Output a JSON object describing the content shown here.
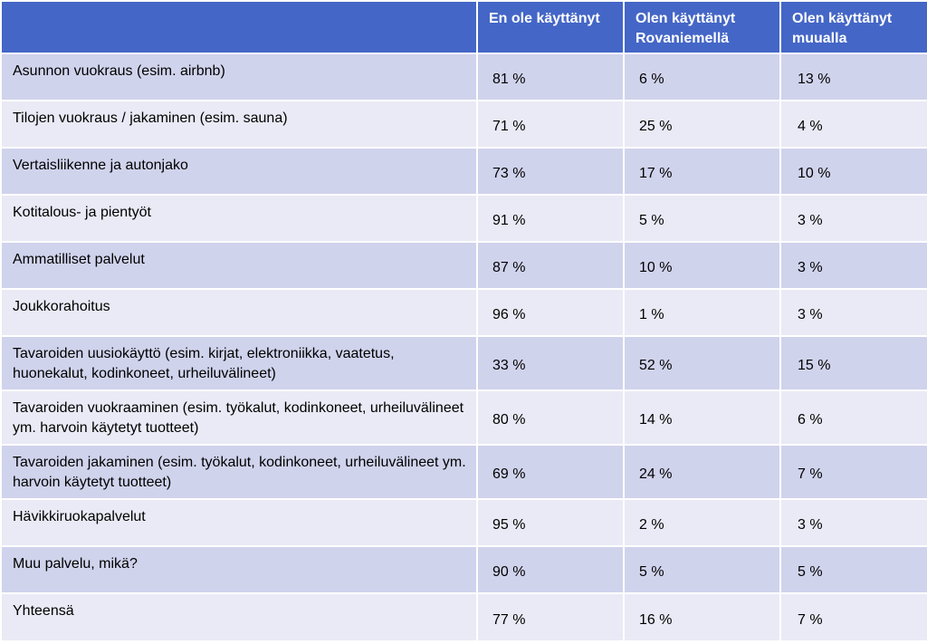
{
  "table": {
    "headers": [
      "",
      "En ole käyttänyt",
      "Olen käyttänyt Rovaniemellä",
      "Olen käyttänyt muualla"
    ],
    "rows": [
      {
        "label": "Asunnon vuokraus (esim. airbnb)",
        "values": [
          "81 %",
          "6 %",
          "13 %"
        ]
      },
      {
        "label": "Tilojen vuokraus / jakaminen (esim. sauna)",
        "values": [
          "71 %",
          "25 %",
          "4 %"
        ]
      },
      {
        "label": "Vertaisliikenne ja autonjako",
        "values": [
          "73 %",
          "17 %",
          "10 %"
        ]
      },
      {
        "label": "Kotitalous- ja pientyöt",
        "values": [
          "91 %",
          "5 %",
          "3 %"
        ]
      },
      {
        "label": "Ammatilliset palvelut",
        "values": [
          "87 %",
          "10 %",
          "3 %"
        ]
      },
      {
        "label": "Joukkorahoitus",
        "values": [
          "96 %",
          "1 %",
          "3 %"
        ]
      },
      {
        "label": "Tavaroiden uusiokäyttö (esim. kirjat, elektroniikka, vaatetus, huonekalut, kodinkoneet, urheiluvälineet)",
        "values": [
          "33 %",
          "52 %",
          "15 %"
        ]
      },
      {
        "label": "Tavaroiden vuokraaminen (esim. työkalut, kodinkoneet, urheiluvälineet ym. harvoin käytetyt tuotteet)",
        "values": [
          "80 %",
          "14 %",
          "6 %"
        ]
      },
      {
        "label": "Tavaroiden jakaminen (esim. työkalut, kodinkoneet, urheiluvälineet ym. harvoin käytetyt tuotteet)",
        "values": [
          "69 %",
          "24 %",
          "7 %"
        ]
      },
      {
        "label": "Hävikkiruokapalvelut",
        "values": [
          "95 %",
          "2 %",
          "3 %"
        ]
      },
      {
        "label": "Muu palvelu, mikä?",
        "values": [
          "90 %",
          "5 %",
          "5 %"
        ]
      },
      {
        "label": "Yhteensä",
        "values": [
          "77 %",
          "16 %",
          "7 %"
        ]
      }
    ]
  },
  "colors": {
    "header_bg": "#4466c6",
    "row_odd_bg": "#d0d3ec",
    "row_even_bg": "#e9eaf5"
  }
}
